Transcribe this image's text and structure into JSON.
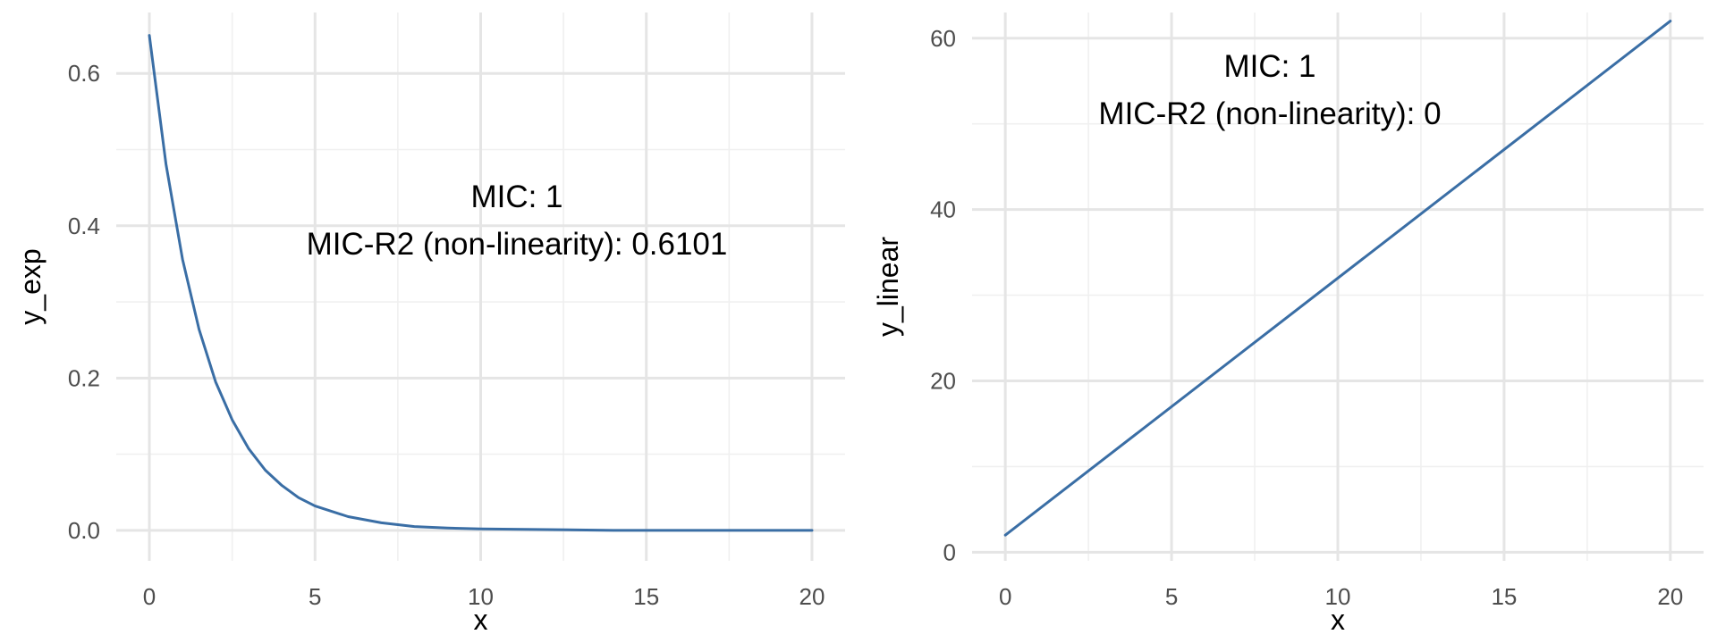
{
  "chart_data": [
    {
      "type": "line",
      "xlabel": "x",
      "ylabel": "y_exp",
      "xlim": [
        -1,
        21
      ],
      "ylim": [
        -0.04,
        0.68
      ],
      "xticks": [
        0,
        5,
        10,
        15,
        20
      ],
      "xtick_labels": [
        "0",
        "5",
        "10",
        "15",
        "20"
      ],
      "yticks": [
        0.0,
        0.2,
        0.4,
        0.6
      ],
      "ytick_labels": [
        "0.0",
        "0.2",
        "0.4",
        "0.6"
      ],
      "xminor": [
        2.5,
        7.5,
        12.5,
        17.5
      ],
      "yminor": [
        0.1,
        0.3,
        0.5
      ],
      "grid": true,
      "annotations": [
        "MIC: 1",
        "MIC-R2 (non-linearity): 0.6101"
      ],
      "series": [
        {
          "color": "#3a6ea5",
          "x": [
            0,
            0.5,
            1,
            1.5,
            2,
            2.5,
            3,
            3.5,
            4,
            4.5,
            5,
            6,
            7,
            8,
            9,
            10,
            12,
            14,
            16,
            18,
            20
          ],
          "y": [
            0.65,
            0.481,
            0.356,
            0.264,
            0.195,
            0.145,
            0.107,
            0.079,
            0.059,
            0.043,
            0.032,
            0.018,
            0.01,
            0.005,
            0.003,
            0.002,
            0.001,
            0.0,
            0.0,
            0.0,
            0.0
          ]
        }
      ]
    },
    {
      "type": "line",
      "xlabel": "x",
      "ylabel": "y_linear",
      "xlim": [
        -1,
        21
      ],
      "ylim": [
        -1,
        63
      ],
      "xticks": [
        0,
        5,
        10,
        15,
        20
      ],
      "xtick_labels": [
        "0",
        "5",
        "10",
        "15",
        "20"
      ],
      "yticks": [
        0,
        20,
        40,
        60
      ],
      "ytick_labels": [
        "0",
        "20",
        "40",
        "60"
      ],
      "xminor": [
        2.5,
        7.5,
        12.5,
        17.5
      ],
      "yminor": [
        10,
        30,
        50
      ],
      "grid": true,
      "annotations": [
        "MIC: 1",
        "MIC-R2 (non-linearity): 0"
      ],
      "series": [
        {
          "color": "#3a6ea5",
          "x": [
            0,
            20
          ],
          "y": [
            2,
            62
          ]
        }
      ]
    }
  ]
}
